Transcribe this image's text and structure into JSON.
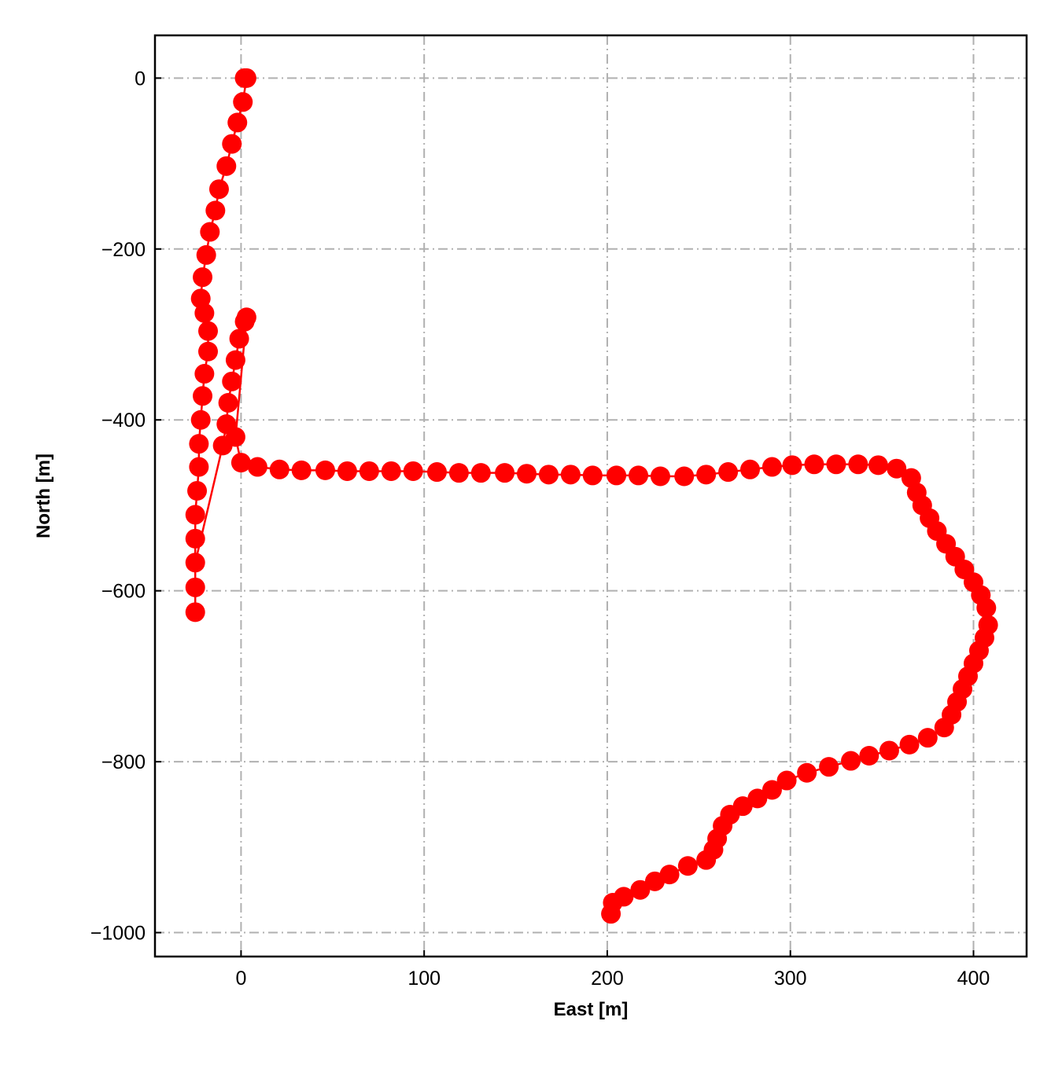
{
  "chart_data": {
    "type": "line",
    "xlabel": "East [m]",
    "ylabel": "North [m]",
    "color": "#ff0000",
    "grid": true,
    "xlim": [
      -47,
      429
    ],
    "ylim": [
      -1028,
      50
    ],
    "xticks": [
      0,
      100,
      200,
      300,
      400
    ],
    "yticks": [
      0,
      {
        "value": -200,
        "label": "−200"
      },
      {
        "value": -400,
        "label": "−400"
      },
      {
        "value": -600,
        "label": "−600"
      },
      {
        "value": -800,
        "label": "−800"
      },
      {
        "value": -1000,
        "label": "−1000"
      }
    ],
    "x": [
      2,
      3,
      1,
      -2,
      -5,
      -8,
      -12,
      -14,
      -17,
      -19,
      -21,
      -22,
      -20,
      -18,
      -18,
      -20,
      -21,
      -22,
      -23,
      -23,
      -24,
      -25,
      -25,
      -25,
      -25,
      -25,
      -10,
      -8,
      -7,
      -5,
      -3,
      -1,
      2,
      3,
      -3,
      0,
      9,
      21,
      33,
      46,
      58,
      70,
      82,
      94,
      107,
      119,
      131,
      144,
      156,
      168,
      180,
      192,
      205,
      217,
      229,
      242,
      254,
      266,
      278,
      290,
      301,
      313,
      325,
      337,
      348,
      358,
      366,
      369,
      372,
      376,
      380,
      385,
      390,
      395,
      400,
      404,
      407,
      408,
      406,
      403,
      400,
      397,
      394,
      391,
      388,
      384,
      375,
      365,
      354,
      343,
      333,
      321,
      309,
      298,
      290,
      282,
      274,
      267,
      263,
      260,
      258,
      254,
      244,
      234,
      226,
      218,
      209,
      203,
      202
    ],
    "values": [
      0,
      0,
      -28,
      -52,
      -77,
      -103,
      -130,
      -155,
      -180,
      -207,
      -233,
      -258,
      -275,
      -296,
      -320,
      -346,
      -372,
      -400,
      -428,
      -455,
      -483,
      -511,
      -539,
      -625,
      -596,
      -567,
      -430,
      -405,
      -380,
      -355,
      -330,
      -305,
      -285,
      -280,
      -420,
      -450,
      -455,
      -458,
      -459,
      -459,
      -460,
      -460,
      -460,
      -460,
      -461,
      -462,
      -462,
      -462,
      -463,
      -464,
      -464,
      -465,
      -465,
      -465,
      -466,
      -466,
      -464,
      -461,
      -458,
      -455,
      -453,
      -452,
      -452,
      -452,
      -453,
      -457,
      -468,
      -485,
      -500,
      -515,
      -530,
      -545,
      -560,
      -575,
      -590,
      -605,
      -620,
      -640,
      -655,
      -670,
      -685,
      -700,
      -715,
      -730,
      -745,
      -760,
      -772,
      -780,
      -787,
      -793,
      -799,
      -806,
      -813,
      -822,
      -833,
      -843,
      -852,
      -862,
      -875,
      -890,
      -903,
      -915,
      -922,
      -932,
      -940,
      -950,
      -958,
      -965,
      -978
    ]
  }
}
